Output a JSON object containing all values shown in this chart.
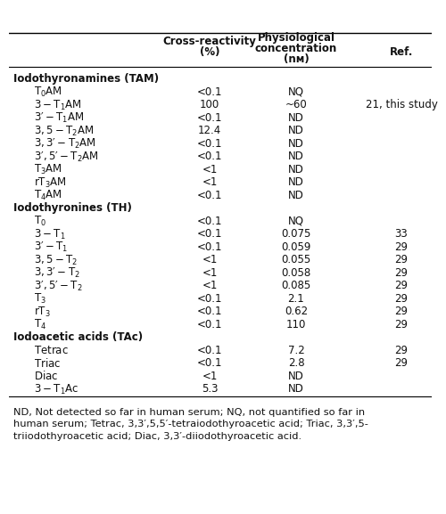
{
  "sections": [
    {
      "title": "Iodothyronamines (TAM)",
      "rows": [
        {
          "label": "T₀AM",
          "cr": "<0.1",
          "pc": "NQ",
          "ref": ""
        },
        {
          "label": "3-T₁AM",
          "cr": "100",
          "pc": "~60",
          "ref": "21, this study"
        },
        {
          "label": "3′-T₁AM",
          "cr": "<0.1",
          "pc": "ND",
          "ref": ""
        },
        {
          "label": "3,5-T₂AM",
          "cr": "12.4",
          "pc": "ND",
          "ref": ""
        },
        {
          "label": "3,3′-T₂AM",
          "cr": "<0.1",
          "pc": "ND",
          "ref": ""
        },
        {
          "label": "3′,5′-T₂AM",
          "cr": "<0.1",
          "pc": "ND",
          "ref": ""
        },
        {
          "label": "T₃AM",
          "cr": "<1",
          "pc": "ND",
          "ref": ""
        },
        {
          "label": "rT₃AM",
          "cr": "<1",
          "pc": "ND",
          "ref": ""
        },
        {
          "label": "T₄AM",
          "cr": "<0.1",
          "pc": "ND",
          "ref": ""
        }
      ]
    },
    {
      "title": "Iodothyronines (TH)",
      "rows": [
        {
          "label": "T₀",
          "cr": "<0.1",
          "pc": "NQ",
          "ref": ""
        },
        {
          "label": "3-T₁",
          "cr": "<0.1",
          "pc": "0.075",
          "ref": "33"
        },
        {
          "label": "3′-T₁",
          "cr": "<0.1",
          "pc": "0.059",
          "ref": "29"
        },
        {
          "label": "3,5-T₂",
          "cr": "<1",
          "pc": "0.055",
          "ref": "29"
        },
        {
          "label": "3,3′-T₂",
          "cr": "<1",
          "pc": "0.058",
          "ref": "29"
        },
        {
          "label": "3′,5′-T₂",
          "cr": "<1",
          "pc": "0.085",
          "ref": "29"
        },
        {
          "label": "T₃",
          "cr": "<0.1",
          "pc": "2.1",
          "ref": "29"
        },
        {
          "label": "rT₃",
          "cr": "<0.1",
          "pc": "0.62",
          "ref": "29"
        },
        {
          "label": "T₄",
          "cr": "<0.1",
          "pc": "110",
          "ref": "29"
        }
      ]
    },
    {
      "title": "Iodoacetic acids (TAc)",
      "rows": [
        {
          "label": "Tetrac",
          "cr": "<0.1",
          "pc": "7.2",
          "ref": "29"
        },
        {
          "label": "Triac",
          "cr": "<0.1",
          "pc": "2.8",
          "ref": "29"
        },
        {
          "label": "Diac",
          "cr": "<1",
          "pc": "ND",
          "ref": ""
        },
        {
          "label": "3-T₁Ac",
          "cr": "5.3",
          "pc": "ND",
          "ref": ""
        }
      ]
    }
  ],
  "footnote_lines": [
    "ND, Not detected so far in human serum; NQ, not quantified so far in",
    "human serum; Tetrac, 3,3′,5,5′-tetraiodothyroacetic acid; Triac, 3,3′,5-",
    "triiodothyroacetic acid; Diac, 3,3′-diiodothyroacetic acid."
  ],
  "bg_color": "#ffffff",
  "text_color": "#111111",
  "font_size": 8.5,
  "header_font_size": 8.5,
  "footnote_font_size": 8.2
}
